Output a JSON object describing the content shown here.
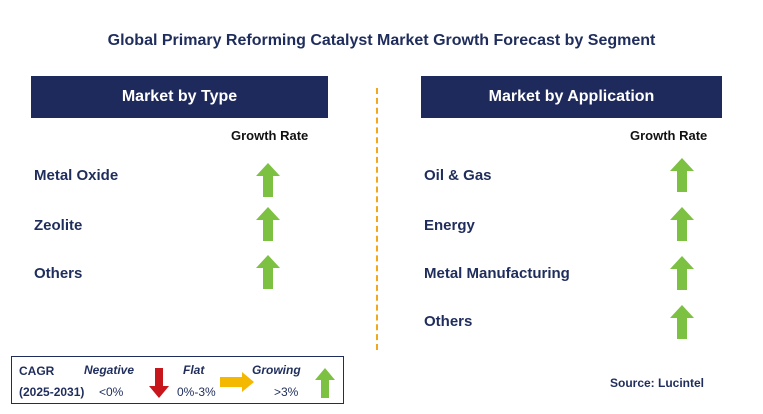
{
  "title": "Global Primary Reforming Catalyst Market Growth Forecast by Segment",
  "left_panel": {
    "heading": "Market by Type",
    "column_label": "Growth Rate",
    "rows": [
      {
        "label": "Metal Oxide",
        "trend": "growing"
      },
      {
        "label": "Zeolite",
        "trend": "growing"
      },
      {
        "label": "Others",
        "trend": "growing"
      }
    ]
  },
  "right_panel": {
    "heading": "Market by Application",
    "column_label": "Growth Rate",
    "rows": [
      {
        "label": "Oil & Gas",
        "trend": "growing"
      },
      {
        "label": "Energy",
        "trend": "growing"
      },
      {
        "label": "Metal Manufacturing",
        "trend": "growing"
      },
      {
        "label": "Others",
        "trend": "growing"
      }
    ]
  },
  "legend": {
    "cagr_label": "CAGR",
    "period": "(2025-2031)",
    "negative_label": "Negative",
    "negative_range": "<0%",
    "flat_label": "Flat",
    "flat_range": "0%-3%",
    "growing_label": "Growing",
    "growing_range": ">3%"
  },
  "source": "Source: Lucintel",
  "colors": {
    "header_bg": "#1f2a5c",
    "growing": "#7dc142",
    "negative": "#c8161d",
    "flat": "#f5b800",
    "divider": "#f2a81e"
  },
  "icons": {
    "growing": "up-arrow-icon",
    "negative": "down-arrow-icon",
    "flat": "right-arrow-icon"
  }
}
